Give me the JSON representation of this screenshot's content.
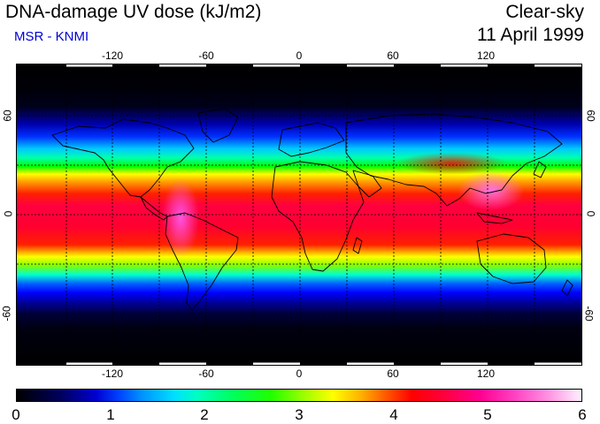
{
  "header": {
    "title": "DNA-damage UV dose (kJ/m2)",
    "subtitle": "MSR - KNMI",
    "condition": "Clear-sky",
    "date": "11 April 1999"
  },
  "map": {
    "lon_ticks_top": [
      "-120",
      "-60",
      "0",
      "60",
      "120"
    ],
    "lon_ticks_bottom": [
      "-120",
      "-60",
      "0",
      "60",
      "120"
    ],
    "lat_ticks_left": [
      "60",
      "0",
      "-60"
    ],
    "lat_ticks_right": [
      "60",
      "0",
      "-60"
    ],
    "grid": true
  },
  "colorbar": {
    "labels": [
      "0",
      "1",
      "2",
      "3",
      "4",
      "5",
      "6"
    ],
    "min": 0,
    "max": 6,
    "unit": "kJ/m2"
  }
}
